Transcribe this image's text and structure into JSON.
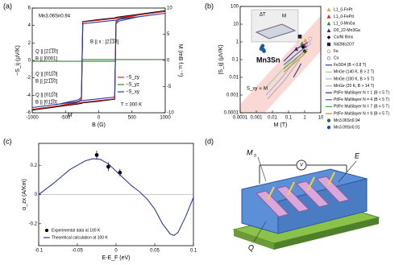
{
  "chart_data": [
    {
      "type": "line",
      "label": "(a)",
      "xlabel": "B (G)",
      "ylabel": "−S_ij (μV/K)",
      "y2label": "M (mB f.u.⁻¹)",
      "xlim": [
        -1000,
        1000
      ],
      "xticks": [
        -1000,
        -500,
        0,
        500,
        1000
      ],
      "ylim": [
        -6,
        6
      ],
      "yticks": [
        -6,
        -4,
        -2,
        0,
        2,
        4,
        6
      ],
      "y2lim": [
        -10,
        10
      ],
      "y2ticks": [
        -10,
        -5,
        0,
        5,
        10
      ],
      "x": [
        -1000,
        -600,
        -300,
        -260,
        -240,
        0,
        240,
        260,
        300,
        600,
        1000,
        600,
        300,
        260,
        240,
        0,
        -240,
        -260,
        -300,
        -600,
        -1000
      ],
      "series": [
        {
          "name": "M",
          "color": "#000000",
          "axis": "y2",
          "values": [
            -9.5,
            -8.8,
            -8.3,
            -8.2,
            -8.1,
            -7.8,
            -7.4,
            7.4,
            7.9,
            8.8,
            9.5,
            8.8,
            8.3,
            8.2,
            8.1,
            7.8,
            7.4,
            -7.4,
            -7.9,
            -8.8,
            -9.5
          ]
        },
        {
          "name": "−S_zy",
          "color": "#d62728",
          "values": [
            -5.6,
            -5.2,
            -4.9,
            -4.8,
            -4.8,
            -4.6,
            -4.4,
            4.4,
            4.7,
            5.2,
            5.6,
            5.2,
            4.9,
            4.8,
            4.8,
            4.6,
            4.4,
            -4.4,
            -4.7,
            -5.2,
            -5.6
          ]
        },
        {
          "name": "−S_yz",
          "color": "#2e8b2e",
          "values": [
            -0.1,
            -0.1,
            -0.1,
            -0.1,
            -0.1,
            -0.1,
            -0.1,
            0.1,
            0.1,
            0.1,
            0.1,
            0.1,
            0.1,
            0.1,
            0.1,
            0.1,
            0.1,
            -0.1,
            -0.1,
            -0.1,
            -0.1
          ]
        },
        {
          "name": "−S_xy",
          "color": "#2b3a9c",
          "values": [
            -5.4,
            -5.0,
            -4.7,
            -4.6,
            -4.6,
            -4.4,
            -4.2,
            4.2,
            4.5,
            5.0,
            5.4,
            5.0,
            4.7,
            4.6,
            4.6,
            4.4,
            4.2,
            -4.2,
            -4.5,
            -5.0,
            -5.4
          ]
        }
      ],
      "annotations": [
        {
          "text": "Mn3.06Sn0.94",
          "color": "#000000"
        },
        {
          "text": "B || x : [21̅1̅0]",
          "color": "#000000"
        },
        {
          "text": "Q || [21̅1̅0]",
          "color": "#2e8b2e"
        },
        {
          "text": "B || [0001]",
          "color": "#2e8b2e"
        },
        {
          "text": "Q || [011̅0]",
          "color": "#2b3a9c"
        },
        {
          "text": "B || [21̅1̅0]",
          "color": "#2b3a9c"
        },
        {
          "text": "Q || [011̅0]",
          "color": "#d62728"
        },
        {
          "text": "B || [011̅0]",
          "color": "#d62728"
        },
        {
          "text": "T = 300 K",
          "color": "#000000"
        }
      ]
    },
    {
      "type": "scatter",
      "label": "(b)",
      "xlabel": "M (T)",
      "ylabel": "|S_ij| (μV/K)",
      "log": true,
      "xlim": [
        0.0001,
        10
      ],
      "xticks": [
        0.0001,
        0.001,
        0.01,
        0.1,
        1,
        10
      ],
      "ylim": [
        0.0001,
        100
      ],
      "yticks": [
        0.0001,
        0.001,
        0.01,
        0.1,
        1,
        10,
        100
      ],
      "series": [
        {
          "name": "L1_0-FePt",
          "color": "#f0a030",
          "marker": "triangle",
          "x": [
            1.1
          ],
          "values": [
            1.2
          ]
        },
        {
          "name": "L1_0-FePd",
          "color": "#d62728",
          "marker": "triangle",
          "x": [
            1.0
          ],
          "values": [
            0.6
          ]
        },
        {
          "name": "L1_0-MnGa",
          "color": "#2e8b2e",
          "marker": "triangle",
          "x": [
            0.7
          ],
          "values": [
            0.8
          ]
        },
        {
          "name": "D0_22-Mn3Ga",
          "color": "#333366",
          "marker": "triangle",
          "x": [
            0.3
          ],
          "values": [
            0.4
          ]
        },
        {
          "name": "Co/Ni films",
          "color": "#000000",
          "marker": "diamond",
          "x": [
            0.8,
            1.0
          ],
          "values": [
            0.5,
            0.3
          ]
        },
        {
          "name": "Nd2Mo2O7",
          "color": "#222222",
          "marker": "square",
          "x": [
            0.5
          ],
          "values": [
            2.0
          ]
        },
        {
          "name": "Fe",
          "color": "#e07070",
          "marker": "circle",
          "open": true,
          "x": [
            2.2
          ],
          "values": [
            1.5
          ]
        },
        {
          "name": "Co",
          "color": "#7070e0",
          "marker": "circle",
          "open": true,
          "x": [
            1.8
          ],
          "values": [
            0.8
          ]
        },
        {
          "name": "Fe3O4 (B < 0.8 T)",
          "color": "#1f3f9f",
          "x": [
            0.2,
            0.4,
            0.6
          ],
          "values": [
            0.01,
            0.03,
            0.06
          ]
        },
        {
          "name": "MnGe (140 K, B > 2 T)",
          "color": "#9fd0a0",
          "x": [
            0.003,
            0.03,
            0.3
          ],
          "values": [
            0.002,
            0.02,
            0.2
          ]
        },
        {
          "name": "MnGe (100 K, B > 5 T)",
          "color": "#a0b0e0",
          "x": [
            0.004,
            0.04,
            0.4
          ],
          "values": [
            0.001,
            0.01,
            0.15
          ]
        },
        {
          "name": "MnGe (20 K, B > 14 T)",
          "color": "#b0b0b0",
          "x": [
            0.005,
            0.05,
            0.5
          ],
          "values": [
            0.0006,
            0.006,
            0.1
          ]
        },
        {
          "name": "Pt/Fe Multilayer N = 1 (B < 5 T)",
          "color": "#2b2b8c",
          "x": [
            0.05,
            0.3,
            1.5
          ],
          "values": [
            0.08,
            0.4,
            0.9
          ]
        },
        {
          "name": "Pt/Fe Multilayer N = 4 (B < 5 T)",
          "color": "#4060c0",
          "x": [
            0.05,
            0.3,
            1.5
          ],
          "values": [
            0.05,
            0.2,
            0.6
          ]
        },
        {
          "name": "Pt/Fe Multilayer N = 7 (B < 5 T)",
          "color": "#40a040",
          "x": [
            0.05,
            0.3,
            1.5
          ],
          "values": [
            0.03,
            0.12,
            0.4
          ]
        },
        {
          "name": "Pt/Fe Multilayer N = 9 (B < 5 T)",
          "color": "#e08020",
          "x": [
            0.05,
            0.3,
            1.5
          ],
          "values": [
            0.02,
            0.08,
            0.3
          ]
        },
        {
          "name": "Mn3.06Sn0.94",
          "color": "#1f6f3f",
          "marker": "circle",
          "x": [
            0.002,
            0.0025,
            0.003
          ],
          "values": [
            0.4,
            0.6,
            0.3
          ]
        },
        {
          "name": "Mn3.09Sn0.91",
          "color": "#1f4fbf",
          "marker": "circle",
          "x": [
            0.0022,
            0.0028
          ],
          "values": [
            0.5,
            0.35
          ]
        }
      ],
      "annotations": [
        {
          "text": "S_xy ∝ M",
          "color": "#d62728"
        },
        {
          "text": "Mn3Sn",
          "color": "#1f4fbf"
        },
        {
          "text": "ΔT",
          "color": "#000000"
        },
        {
          "text": "M",
          "color": "#000000"
        }
      ]
    },
    {
      "type": "line",
      "label": "(c)",
      "xlabel": "E-E_F (eV)",
      "ylabel": "α_zx (A/Km)",
      "xlim": [
        -0.1,
        0.1
      ],
      "xticks": [
        -0.1,
        -0.05,
        0,
        0.05,
        0.1
      ],
      "ylim": [
        -0.35,
        0.35
      ],
      "yticks": [
        -0.2,
        0,
        0.2
      ],
      "series": [
        {
          "name": "Experimental data at 100 K",
          "color": "#000000",
          "marker": "circle",
          "x": [
            -0.025,
            -0.01,
            0.005
          ],
          "values": [
            0.27,
            0.19,
            0.15
          ],
          "errors": [
            0.03,
            0.03,
            0.025
          ]
        },
        {
          "name": "Theoretical calculation at 100 K",
          "color": "#2b3a9c",
          "x": [
            -0.1,
            -0.08,
            -0.06,
            -0.04,
            -0.03,
            -0.02,
            -0.01,
            0,
            0.01,
            0.02,
            0.03,
            0.04,
            0.05,
            0.06,
            0.07,
            0.075,
            0.08,
            0.09,
            0.1
          ],
          "values": [
            0.0,
            0.08,
            0.17,
            0.23,
            0.245,
            0.24,
            0.21,
            0.16,
            0.11,
            0.06,
            0.02,
            -0.03,
            -0.1,
            -0.2,
            -0.27,
            -0.28,
            -0.26,
            -0.15,
            -0.02
          ]
        }
      ]
    }
  ],
  "diagram": {
    "label": "(d)",
    "magnetization": "M",
    "magnetization_sub": "s",
    "voltage": "V",
    "field": "E",
    "heat": "Q"
  }
}
